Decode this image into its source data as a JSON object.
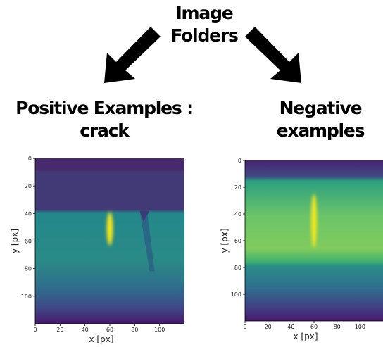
{
  "header": {
    "title": [
      "Image",
      "Folders"
    ]
  },
  "panels": [
    {
      "label": [
        "Positive Examples :",
        "crack"
      ],
      "x_label": "x [px]",
      "y_label": "y [px]",
      "xlim": [
        0,
        120
      ],
      "ylim": [
        0,
        120
      ],
      "xticks": [
        0,
        20,
        40,
        60,
        80,
        100
      ],
      "yticks": [
        0,
        20,
        40,
        60,
        80,
        100
      ]
    },
    {
      "label": [
        "Negative",
        "examples"
      ],
      "x_label": "x [px]",
      "y_label": "y [px]",
      "xlim": [
        0,
        120
      ],
      "ylim": [
        0,
        120
      ],
      "xticks": [
        0,
        20,
        40,
        60,
        80,
        100
      ],
      "yticks": [
        0,
        20,
        40,
        60,
        80,
        100
      ]
    }
  ]
}
